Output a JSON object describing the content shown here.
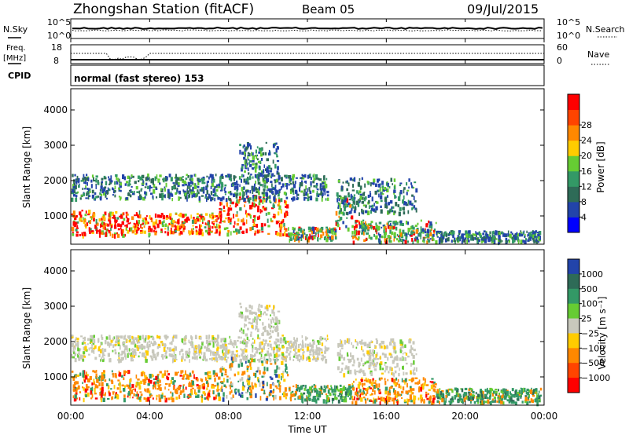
{
  "header": {
    "station": "Zhongshan Station (fitACF)",
    "beam": "Beam 05",
    "date": "09/Jul/2015"
  },
  "noise_panel": {
    "left_label": "N.Sky",
    "left_ticks": [
      "10^5",
      "10^0"
    ],
    "right_label": "N.Search",
    "right_ticks": [
      "10^5",
      "10^0"
    ]
  },
  "freq_panel": {
    "left_label_1": "Freq.",
    "left_label_2": "[MHz]",
    "left_ticks": [
      "18",
      "8"
    ],
    "right_label": "Nave",
    "right_ticks": [
      "60",
      "0"
    ]
  },
  "cpid_panel": {
    "label": "CPID",
    "text": "normal (fast stereo) 153"
  },
  "colors": {
    "red": "#ff0000",
    "orange": "#ff8800",
    "yellow": "#ffcc00",
    "green_light": "#66cc33",
    "green_mid": "#339966",
    "green_dark": "#2e6b57",
    "blue": "#2244aa",
    "blue_bright": "#0000ff",
    "gray": "#c8c8bc"
  },
  "chart_data": [
    {
      "type": "heatmap",
      "name": "power",
      "ylabel": "Slant Range [km]",
      "yticks": [
        "1000",
        "2000",
        "3000",
        "4000"
      ],
      "ylim": [
        200,
        4600
      ],
      "colorbar": {
        "label": "Power [dB]",
        "ticks": [
          "4",
          "8",
          "12",
          "16",
          "20",
          "24",
          "28"
        ],
        "colors": [
          "#0000ff",
          "#2244aa",
          "#2e6b57",
          "#339966",
          "#66cc33",
          "#ffcc00",
          "#ff8800",
          "#ff4400",
          "#ff0000"
        ]
      },
      "bands": [
        {
          "t0": 0.0,
          "t1": 3.5,
          "r0": 480,
          "r1": 1180,
          "level": "high"
        },
        {
          "t0": 3.5,
          "t1": 7.5,
          "r0": 520,
          "r1": 1100,
          "level": "high"
        },
        {
          "t0": 7.5,
          "t1": 11.0,
          "r0": 500,
          "r1": 1600,
          "level": "high"
        },
        {
          "t0": 11.0,
          "t1": 13.4,
          "r0": 350,
          "r1": 700,
          "level": "mid"
        },
        {
          "t0": 13.4,
          "t1": 14.2,
          "r0": 650,
          "r1": 1700,
          "level": "mid"
        },
        {
          "t0": 14.2,
          "t1": 18.5,
          "r0": 300,
          "r1": 900,
          "level": "mid"
        },
        {
          "t0": 18.5,
          "t1": 23.8,
          "r0": 300,
          "r1": 600,
          "level": "low"
        },
        {
          "t0": 0.0,
          "t1": 13.0,
          "r0": 1500,
          "r1": 2200,
          "level": "low"
        },
        {
          "t0": 8.5,
          "t1": 10.5,
          "r0": 2200,
          "r1": 3100,
          "level": "low"
        },
        {
          "t0": 13.5,
          "t1": 17.5,
          "r0": 1100,
          "r1": 2100,
          "level": "low"
        }
      ]
    },
    {
      "type": "heatmap",
      "name": "velocity",
      "xlabel": "Time UT",
      "xticks": [
        "00:00",
        "04:00",
        "08:00",
        "12:00",
        "16:00",
        "20:00",
        "00:00"
      ],
      "ylabel": "Slant Range [km]",
      "yticks": [
        "1000",
        "2000",
        "3000",
        "4000"
      ],
      "ylim": [
        200,
        4600
      ],
      "colorbar": {
        "label": "Velocity [m s⁻¹]",
        "ticks": [
          "1000",
          "500",
          "100",
          "25",
          "−25",
          "−100",
          "−500",
          "−1000"
        ],
        "colors": [
          "#2244aa",
          "#2e6b57",
          "#339966",
          "#66cc33",
          "#c8c8bc",
          "#ffcc00",
          "#ff8800",
          "#ff4400",
          "#ff0000"
        ]
      },
      "bands": [
        {
          "t0": 0.0,
          "t1": 7.5,
          "r0": 400,
          "r1": 1200,
          "level": "neg"
        },
        {
          "t0": 7.5,
          "t1": 11.0,
          "r0": 400,
          "r1": 1600,
          "level": "mixed"
        },
        {
          "t0": 11.0,
          "t1": 14.2,
          "r0": 350,
          "r1": 800,
          "level": "pos"
        },
        {
          "t0": 14.2,
          "t1": 18.5,
          "r0": 300,
          "r1": 1000,
          "level": "neg"
        },
        {
          "t0": 18.5,
          "t1": 23.8,
          "r0": 300,
          "r1": 700,
          "level": "pos"
        },
        {
          "t0": 0.0,
          "t1": 13.0,
          "r0": 1500,
          "r1": 2200,
          "level": "zero"
        },
        {
          "t0": 8.5,
          "t1": 10.5,
          "r0": 2200,
          "r1": 3100,
          "level": "zero"
        },
        {
          "t0": 13.5,
          "t1": 17.5,
          "r0": 1100,
          "r1": 2100,
          "level": "zero"
        }
      ]
    }
  ]
}
